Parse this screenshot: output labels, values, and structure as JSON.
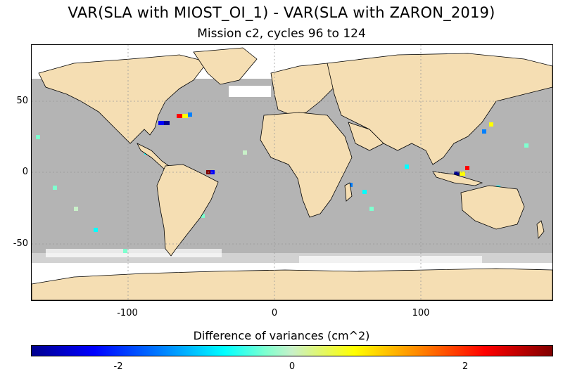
{
  "title": "VAR(SLA with MIOST_OI_1) - VAR(SLA with ZARON_2019)",
  "subtitle": "Mission c2, cycles 96 to 124",
  "axes": {
    "x_ticks": [
      "-100",
      "0",
      "100"
    ],
    "y_ticks": [
      "50",
      "0",
      "-50"
    ],
    "lon_range": [
      -166,
      190
    ],
    "lat_range": [
      -88,
      88
    ]
  },
  "colorbar": {
    "label": "Difference of variances (cm^2)",
    "ticks": [
      "-2",
      "0",
      "2"
    ],
    "range": [
      -3,
      3
    ],
    "colormap": "jet"
  },
  "colors": {
    "land": "#f5deb3",
    "ocean_neutral": "#b4b4b4",
    "no_data": "#ffffff"
  }
}
